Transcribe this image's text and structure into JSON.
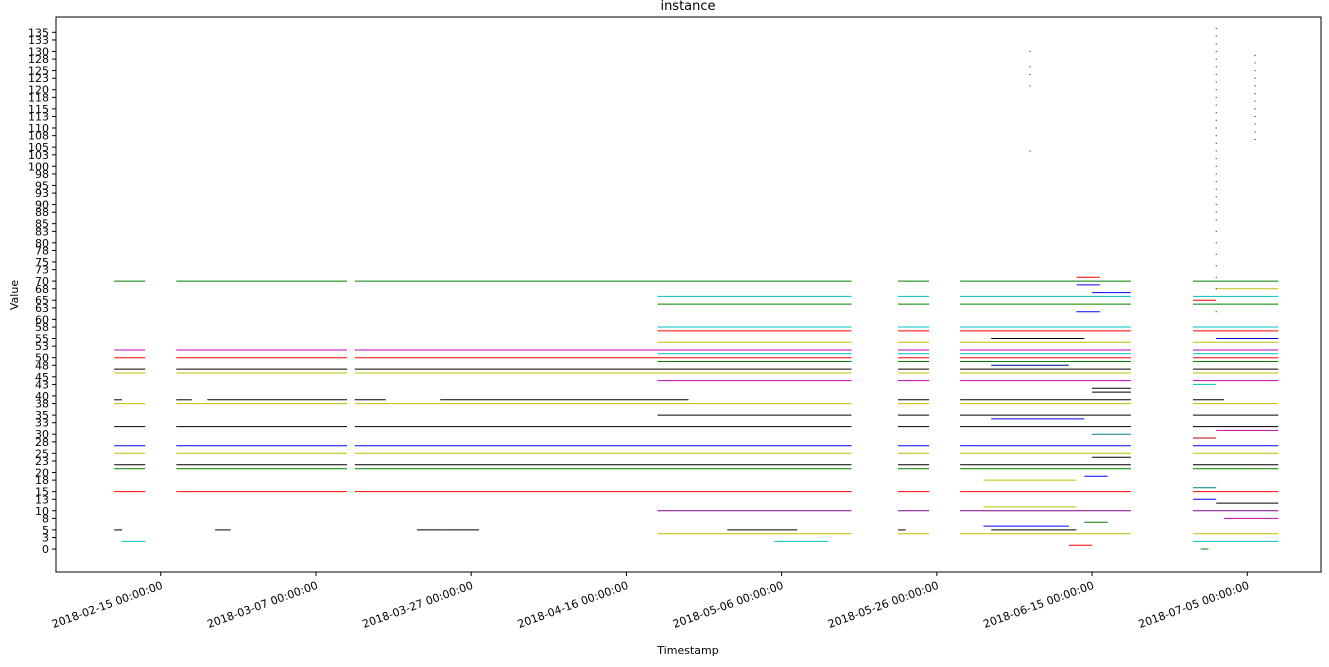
{
  "chart_data": {
    "type": "line",
    "title": "instance",
    "xlabel": "Timestamp",
    "ylabel": "Value",
    "x_range": [
      "2018-02-01 12:00",
      "2018-07-14 12:00"
    ],
    "y_range": [
      -6,
      139
    ],
    "x_ticks": [
      "2018-02-15 00:00:00",
      "2018-03-07 00:00:00",
      "2018-03-27 00:00:00",
      "2018-04-16 00:00:00",
      "2018-05-06 00:00:00",
      "2018-05-26 00:00:00",
      "2018-06-15 00:00:00",
      "2018-07-05 00:00:00"
    ],
    "y_ticks": [
      0,
      3,
      5,
      8,
      10,
      13,
      15,
      18,
      20,
      23,
      25,
      28,
      30,
      33,
      35,
      38,
      40,
      43,
      45,
      48,
      50,
      53,
      55,
      58,
      60,
      63,
      65,
      68,
      70,
      73,
      75,
      78,
      80,
      83,
      85,
      88,
      90,
      93,
      95,
      98,
      100,
      103,
      105,
      108,
      110,
      113,
      115,
      118,
      120,
      123,
      125,
      128,
      130,
      133,
      135
    ],
    "series": [
      {
        "color": "#008000",
        "y": 70,
        "segments": [
          [
            "2018-02-09",
            "2018-02-13"
          ],
          [
            "2018-02-17",
            "2018-03-11"
          ],
          [
            "2018-03-12",
            "2018-05-15"
          ],
          [
            "2018-05-21",
            "2018-05-25"
          ],
          [
            "2018-05-29",
            "2018-06-20"
          ],
          [
            "2018-06-28",
            "2018-07-09"
          ]
        ]
      },
      {
        "color": "#00bfbf",
        "y": 66,
        "segments": [
          [
            "2018-04-20",
            "2018-05-15"
          ],
          [
            "2018-05-21",
            "2018-05-25"
          ],
          [
            "2018-05-29",
            "2018-06-20"
          ],
          [
            "2018-06-28",
            "2018-07-09"
          ]
        ]
      },
      {
        "color": "#008000",
        "y": 64,
        "segments": [
          [
            "2018-04-20",
            "2018-05-15"
          ],
          [
            "2018-05-21",
            "2018-05-25"
          ],
          [
            "2018-05-29",
            "2018-06-20"
          ],
          [
            "2018-06-28",
            "2018-07-09"
          ]
        ]
      },
      {
        "color": "#00bfbf",
        "y": 58,
        "segments": [
          [
            "2018-04-20",
            "2018-05-15"
          ],
          [
            "2018-05-21",
            "2018-05-25"
          ],
          [
            "2018-05-29",
            "2018-06-20"
          ],
          [
            "2018-06-28",
            "2018-07-09"
          ]
        ]
      },
      {
        "color": "#ff0000",
        "y": 57,
        "segments": [
          [
            "2018-04-20",
            "2018-05-15"
          ],
          [
            "2018-05-21",
            "2018-05-25"
          ],
          [
            "2018-05-29",
            "2018-06-20"
          ],
          [
            "2018-06-28",
            "2018-07-09"
          ]
        ]
      },
      {
        "color": "#bfbf00",
        "y": 54,
        "segments": [
          [
            "2018-04-20",
            "2018-05-15"
          ],
          [
            "2018-05-21",
            "2018-05-25"
          ],
          [
            "2018-05-29",
            "2018-06-20"
          ],
          [
            "2018-06-28",
            "2018-07-09"
          ]
        ]
      },
      {
        "color": "#bf00bf",
        "y": 52,
        "segments": [
          [
            "2018-02-09",
            "2018-02-13"
          ],
          [
            "2018-02-17",
            "2018-03-11"
          ],
          [
            "2018-03-12",
            "2018-05-15"
          ],
          [
            "2018-05-21",
            "2018-05-25"
          ],
          [
            "2018-05-29",
            "2018-06-20"
          ],
          [
            "2018-06-28",
            "2018-07-09"
          ]
        ]
      },
      {
        "color": "#00bfbf",
        "y": 51,
        "segments": [
          [
            "2018-04-20",
            "2018-05-15"
          ],
          [
            "2018-05-21",
            "2018-05-25"
          ],
          [
            "2018-05-29",
            "2018-06-20"
          ],
          [
            "2018-06-28",
            "2018-07-09"
          ]
        ]
      },
      {
        "color": "#ff0000",
        "y": 50,
        "segments": [
          [
            "2018-02-09",
            "2018-02-13"
          ],
          [
            "2018-02-17",
            "2018-03-11"
          ],
          [
            "2018-03-12",
            "2018-05-15"
          ],
          [
            "2018-05-21",
            "2018-05-25"
          ],
          [
            "2018-05-29",
            "2018-06-20"
          ],
          [
            "2018-06-28",
            "2018-07-09"
          ]
        ]
      },
      {
        "color": "#008000",
        "y": 49,
        "segments": [
          [
            "2018-04-20",
            "2018-05-15"
          ],
          [
            "2018-05-21",
            "2018-05-25"
          ],
          [
            "2018-05-29",
            "2018-06-20"
          ],
          [
            "2018-06-28",
            "2018-07-09"
          ]
        ]
      },
      {
        "color": "#000000",
        "y": 47,
        "segments": [
          [
            "2018-02-09",
            "2018-02-13"
          ],
          [
            "2018-02-17",
            "2018-03-11"
          ],
          [
            "2018-03-12",
            "2018-05-15"
          ],
          [
            "2018-05-21",
            "2018-05-25"
          ],
          [
            "2018-05-29",
            "2018-06-20"
          ],
          [
            "2018-06-28",
            "2018-07-09"
          ]
        ]
      },
      {
        "color": "#bfbf00",
        "y": 46,
        "segments": [
          [
            "2018-02-09",
            "2018-02-13"
          ],
          [
            "2018-02-17",
            "2018-03-11"
          ],
          [
            "2018-03-12",
            "2018-05-15"
          ],
          [
            "2018-05-21",
            "2018-05-25"
          ],
          [
            "2018-05-29",
            "2018-06-20"
          ],
          [
            "2018-06-28",
            "2018-07-09"
          ]
        ]
      },
      {
        "color": "#bf00bf",
        "y": 44,
        "segments": [
          [
            "2018-04-20",
            "2018-05-15"
          ],
          [
            "2018-05-21",
            "2018-05-25"
          ],
          [
            "2018-05-29",
            "2018-06-20"
          ],
          [
            "2018-06-28",
            "2018-07-09"
          ]
        ]
      },
      {
        "color": "#000000",
        "y": 39,
        "segments": [
          [
            "2018-02-09",
            "2018-02-10"
          ],
          [
            "2018-02-17",
            "2018-02-19"
          ],
          [
            "2018-02-21",
            "2018-03-11"
          ],
          [
            "2018-03-12",
            "2018-03-16"
          ],
          [
            "2018-03-23",
            "2018-04-24"
          ],
          [
            "2018-05-21",
            "2018-05-25"
          ],
          [
            "2018-05-29",
            "2018-06-20"
          ],
          [
            "2018-06-28",
            "2018-07-02"
          ]
        ]
      },
      {
        "color": "#bfbf00",
        "y": 38,
        "segments": [
          [
            "2018-02-09",
            "2018-02-13"
          ],
          [
            "2018-02-17",
            "2018-03-11"
          ],
          [
            "2018-03-12",
            "2018-05-15"
          ],
          [
            "2018-05-21",
            "2018-05-25"
          ],
          [
            "2018-05-29",
            "2018-06-20"
          ],
          [
            "2018-06-28",
            "2018-07-09"
          ]
        ]
      },
      {
        "color": "#000000",
        "y": 35,
        "segments": [
          [
            "2018-04-20",
            "2018-05-15"
          ],
          [
            "2018-05-21",
            "2018-05-25"
          ],
          [
            "2018-05-29",
            "2018-06-20"
          ],
          [
            "2018-06-28",
            "2018-07-09"
          ]
        ]
      },
      {
        "color": "#000000",
        "y": 32,
        "segments": [
          [
            "2018-02-09",
            "2018-02-13"
          ],
          [
            "2018-02-17",
            "2018-03-11"
          ],
          [
            "2018-03-12",
            "2018-05-15"
          ],
          [
            "2018-05-21",
            "2018-05-25"
          ],
          [
            "2018-05-29",
            "2018-06-20"
          ],
          [
            "2018-06-28",
            "2018-07-09"
          ]
        ]
      },
      {
        "color": "#0000ff",
        "y": 27,
        "segments": [
          [
            "2018-02-09",
            "2018-02-13"
          ],
          [
            "2018-02-17",
            "2018-03-11"
          ],
          [
            "2018-03-12",
            "2018-05-15"
          ],
          [
            "2018-05-21",
            "2018-05-25"
          ],
          [
            "2018-05-29",
            "2018-06-20"
          ],
          [
            "2018-06-28",
            "2018-07-09"
          ]
        ]
      },
      {
        "color": "#bfbf00",
        "y": 25,
        "segments": [
          [
            "2018-02-09",
            "2018-02-13"
          ],
          [
            "2018-02-17",
            "2018-03-11"
          ],
          [
            "2018-03-12",
            "2018-05-15"
          ],
          [
            "2018-05-21",
            "2018-05-25"
          ],
          [
            "2018-05-29",
            "2018-06-20"
          ],
          [
            "2018-06-28",
            "2018-07-09"
          ]
        ]
      },
      {
        "color": "#000000",
        "y": 22,
        "segments": [
          [
            "2018-02-09",
            "2018-02-13"
          ],
          [
            "2018-02-17",
            "2018-03-11"
          ],
          [
            "2018-03-12",
            "2018-05-15"
          ],
          [
            "2018-05-21",
            "2018-05-25"
          ],
          [
            "2018-05-29",
            "2018-06-20"
          ],
          [
            "2018-06-28",
            "2018-07-09"
          ]
        ]
      },
      {
        "color": "#008000",
        "y": 21,
        "segments": [
          [
            "2018-02-09",
            "2018-02-13"
          ],
          [
            "2018-02-17",
            "2018-03-11"
          ],
          [
            "2018-03-12",
            "2018-05-15"
          ],
          [
            "2018-05-21",
            "2018-05-25"
          ],
          [
            "2018-05-29",
            "2018-06-20"
          ],
          [
            "2018-06-28",
            "2018-07-09"
          ]
        ]
      },
      {
        "color": "#bfbf00",
        "y": 18,
        "segments": [
          [
            "2018-06-01",
            "2018-06-13"
          ]
        ]
      },
      {
        "color": "#ff0000",
        "y": 15,
        "segments": [
          [
            "2018-02-09",
            "2018-02-13"
          ],
          [
            "2018-02-17",
            "2018-03-11"
          ],
          [
            "2018-03-12",
            "2018-05-15"
          ],
          [
            "2018-05-21",
            "2018-05-25"
          ],
          [
            "2018-05-29",
            "2018-06-20"
          ],
          [
            "2018-06-28",
            "2018-07-09"
          ]
        ]
      },
      {
        "color": "#bfbf00",
        "y": 11,
        "segments": [
          [
            "2018-06-01",
            "2018-06-13"
          ]
        ]
      },
      {
        "color": "#800080",
        "y": 10,
        "segments": [
          [
            "2018-04-20",
            "2018-05-15"
          ],
          [
            "2018-05-21",
            "2018-05-25"
          ],
          [
            "2018-05-29",
            "2018-06-20"
          ],
          [
            "2018-06-28",
            "2018-07-09"
          ]
        ]
      },
      {
        "color": "#bf00bf",
        "y": 8,
        "segments": [
          [
            "2018-07-02",
            "2018-07-09"
          ]
        ]
      },
      {
        "color": "#0000ff",
        "y": 6,
        "segments": [
          [
            "2018-06-01",
            "2018-06-12"
          ]
        ]
      },
      {
        "color": "#000000",
        "y": 5,
        "segments": [
          [
            "2018-02-09",
            "2018-02-10"
          ],
          [
            "2018-02-22",
            "2018-02-24"
          ],
          [
            "2018-03-20",
            "2018-03-23"
          ],
          [
            "2018-03-23",
            "2018-03-28"
          ],
          [
            "2018-04-29",
            "2018-05-08"
          ],
          [
            "2018-05-21",
            "2018-05-22"
          ],
          [
            "2018-06-02",
            "2018-06-13"
          ]
        ]
      },
      {
        "color": "#bfbf00",
        "y": 4,
        "segments": [
          [
            "2018-04-20",
            "2018-05-15"
          ],
          [
            "2018-05-21",
            "2018-05-25"
          ],
          [
            "2018-05-29",
            "2018-06-20"
          ],
          [
            "2018-06-28",
            "2018-07-09"
          ]
        ]
      },
      {
        "color": "#00bfbf",
        "y": 2,
        "segments": [
          [
            "2018-02-10",
            "2018-02-13"
          ],
          [
            "2018-05-05",
            "2018-05-12"
          ],
          [
            "2018-06-28",
            "2018-07-09"
          ]
        ]
      },
      {
        "color": "#ff0000",
        "y": 1,
        "segments": [
          [
            "2018-06-12",
            "2018-06-15"
          ]
        ]
      },
      {
        "color": "#008000",
        "y": 0,
        "segments": [
          [
            "2018-06-29",
            "2018-06-30"
          ]
        ]
      },
      {
        "color": "#ff0000",
        "y": 71,
        "segments": [
          [
            "2018-06-13",
            "2018-06-16"
          ]
        ]
      },
      {
        "color": "#0000ff",
        "y": 69,
        "segments": [
          [
            "2018-06-13",
            "2018-06-16"
          ]
        ]
      },
      {
        "color": "#0000ff",
        "y": 67,
        "segments": [
          [
            "2018-06-15",
            "2018-06-20"
          ]
        ]
      },
      {
        "color": "#bfbf00",
        "y": 68,
        "segments": [
          [
            "2018-07-01",
            "2018-07-09"
          ]
        ]
      },
      {
        "color": "#ff0000",
        "y": 65,
        "segments": [
          [
            "2018-06-28",
            "2018-07-01"
          ]
        ]
      },
      {
        "color": "#0000ff",
        "y": 62,
        "segments": [
          [
            "2018-06-13",
            "2018-06-16"
          ]
        ]
      },
      {
        "color": "#0000bf",
        "y": 55,
        "segments": [
          [
            "2018-07-01",
            "2018-07-09"
          ]
        ]
      },
      {
        "color": "#000000",
        "y": 55,
        "segments": [
          [
            "2018-06-02",
            "2018-06-14"
          ]
        ]
      },
      {
        "color": "#000080",
        "y": 48,
        "segments": [
          [
            "2018-06-02",
            "2018-06-12"
          ]
        ]
      },
      {
        "color": "#000000",
        "y": 42,
        "segments": [
          [
            "2018-06-15",
            "2018-06-20"
          ]
        ]
      },
      {
        "color": "#000000",
        "y": 41,
        "segments": [
          [
            "2018-06-15",
            "2018-06-20"
          ]
        ]
      },
      {
        "color": "#00bfbf",
        "y": 43,
        "segments": [
          [
            "2018-06-28",
            "2018-07-01"
          ]
        ]
      },
      {
        "color": "#0000ff",
        "y": 34,
        "segments": [
          [
            "2018-06-02",
            "2018-06-14"
          ]
        ]
      },
      {
        "color": "#008080",
        "y": 30,
        "segments": [
          [
            "2018-06-15",
            "2018-06-20"
          ]
        ]
      },
      {
        "color": "#000000",
        "y": 24,
        "segments": [
          [
            "2018-06-15",
            "2018-06-20"
          ]
        ]
      },
      {
        "color": "#bf00bf",
        "y": 31,
        "segments": [
          [
            "2018-07-01",
            "2018-07-09"
          ]
        ]
      },
      {
        "color": "#bf0000",
        "y": 29,
        "segments": [
          [
            "2018-06-28",
            "2018-07-01"
          ]
        ]
      },
      {
        "color": "#0000ff",
        "y": 19,
        "segments": [
          [
            "2018-06-14",
            "2018-06-17"
          ]
        ]
      },
      {
        "color": "#008080",
        "y": 16,
        "segments": [
          [
            "2018-06-28",
            "2018-07-01"
          ]
        ]
      },
      {
        "color": "#0000ff",
        "y": 13,
        "segments": [
          [
            "2018-06-28",
            "2018-07-01"
          ]
        ]
      },
      {
        "color": "#000000",
        "y": 12,
        "segments": [
          [
            "2018-07-01",
            "2018-07-09"
          ]
        ]
      },
      {
        "color": "#008000",
        "y": 7,
        "segments": [
          [
            "2018-06-14",
            "2018-06-17"
          ]
        ]
      }
    ],
    "scatter_points": [
      {
        "color": "#000000",
        "x": "2018-06-07",
        "y": [
          104,
          121,
          124,
          126,
          130
        ]
      },
      {
        "color": "#000000",
        "x": "2018-07-01",
        "y": [
          62,
          68,
          71,
          74,
          77,
          80,
          83,
          86,
          88,
          90,
          92,
          94,
          96,
          98,
          100,
          102,
          104,
          106,
          108,
          110,
          112,
          114,
          116,
          118,
          120,
          122,
          124,
          126,
          128,
          130,
          132,
          134,
          136
        ]
      },
      {
        "color": "#000000",
        "x": "2018-07-06",
        "y": [
          107,
          109,
          111,
          113,
          115,
          117,
          119,
          121,
          123,
          125,
          127,
          129
        ]
      }
    ]
  }
}
